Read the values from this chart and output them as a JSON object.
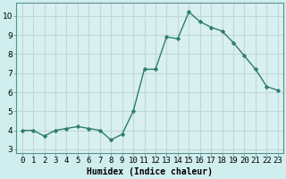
{
  "x": [
    0,
    1,
    2,
    3,
    4,
    5,
    6,
    7,
    8,
    9,
    10,
    11,
    12,
    13,
    14,
    15,
    16,
    17,
    18,
    19,
    20,
    21,
    22,
    23
  ],
  "y": [
    4.0,
    4.0,
    3.7,
    4.0,
    4.1,
    4.2,
    4.1,
    4.0,
    3.5,
    3.8,
    5.0,
    7.2,
    7.2,
    8.9,
    8.8,
    10.2,
    9.7,
    9.4,
    9.2,
    8.6,
    7.9,
    7.2,
    6.3,
    6.1
  ],
  "line_color": "#2e7d6e",
  "marker": "D",
  "marker_size": 2.0,
  "line_width": 1.0,
  "xlabel": "Humidex (Indice chaleur)",
  "xlabel_fontsize": 7,
  "xlabel_weight": "bold",
  "bg_color": "#d0eeee",
  "plot_bg_color": "#d8f0f0",
  "grid_color": "#c0d8d8",
  "yticks": [
    3,
    4,
    5,
    6,
    7,
    8,
    9,
    10
  ],
  "ylim": [
    2.8,
    10.7
  ],
  "xlim": [
    -0.5,
    23.5
  ],
  "tick_fontsize": 6.5,
  "ytick_fontsize": 6.5
}
